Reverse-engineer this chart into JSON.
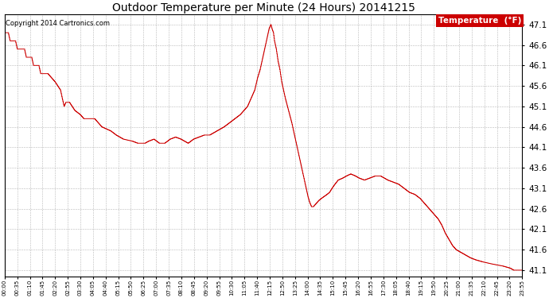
{
  "title": "Outdoor Temperature per Minute (24 Hours) 20141215",
  "copyright_text": "Copyright 2014 Cartronics.com",
  "legend_label": "Temperature  (°F)",
  "line_color": "#cc0000",
  "legend_bg": "#cc0000",
  "legend_text_color": "#ffffff",
  "background_color": "#ffffff",
  "grid_color": "#b0b0b0",
  "ylim": [
    40.95,
    47.35
  ],
  "yticks": [
    41.1,
    41.6,
    42.1,
    42.6,
    43.1,
    43.6,
    44.1,
    44.6,
    45.1,
    45.6,
    46.1,
    46.6,
    47.1
  ],
  "xtick_labels": [
    "00:00",
    "00:35",
    "01:10",
    "01:45",
    "02:20",
    "02:55",
    "03:30",
    "04:05",
    "04:40",
    "05:15",
    "05:50",
    "06:25",
    "07:00",
    "07:35",
    "08:10",
    "08:45",
    "09:20",
    "09:55",
    "10:30",
    "11:05",
    "11:40",
    "12:15",
    "12:50",
    "13:25",
    "14:00",
    "14:35",
    "15:10",
    "15:45",
    "16:20",
    "16:55",
    "17:30",
    "18:05",
    "18:40",
    "19:15",
    "19:50",
    "20:25",
    "21:00",
    "21:35",
    "22:10",
    "22:45",
    "23:20",
    "23:55"
  ],
  "step_data": [
    [
      0,
      46.9
    ],
    [
      10,
      46.9
    ],
    [
      15,
      46.7
    ],
    [
      30,
      46.7
    ],
    [
      35,
      46.5
    ],
    [
      55,
      46.5
    ],
    [
      60,
      46.3
    ],
    [
      75,
      46.3
    ],
    [
      80,
      46.1
    ],
    [
      95,
      46.1
    ],
    [
      100,
      45.9
    ],
    [
      120,
      45.9
    ],
    [
      130,
      45.8
    ],
    [
      140,
      45.7
    ],
    [
      155,
      45.5
    ],
    [
      160,
      45.3
    ],
    [
      165,
      45.1
    ],
    [
      170,
      45.2
    ],
    [
      180,
      45.2
    ],
    [
      195,
      45.0
    ],
    [
      210,
      44.9
    ],
    [
      220,
      44.8
    ],
    [
      250,
      44.8
    ],
    [
      270,
      44.6
    ],
    [
      295,
      44.5
    ],
    [
      310,
      44.4
    ],
    [
      330,
      44.3
    ],
    [
      355,
      44.25
    ],
    [
      370,
      44.2
    ],
    [
      390,
      44.2
    ],
    [
      400,
      44.25
    ],
    [
      415,
      44.3
    ],
    [
      430,
      44.2
    ],
    [
      445,
      44.2
    ],
    [
      460,
      44.3
    ],
    [
      475,
      44.35
    ],
    [
      490,
      44.3
    ],
    [
      500,
      44.25
    ],
    [
      510,
      44.2
    ],
    [
      525,
      44.3
    ],
    [
      540,
      44.35
    ],
    [
      555,
      44.4
    ],
    [
      570,
      44.4
    ],
    [
      590,
      44.5
    ],
    [
      610,
      44.6
    ],
    [
      625,
      44.7
    ],
    [
      640,
      44.8
    ],
    [
      655,
      44.9
    ],
    [
      665,
      45.0
    ],
    [
      675,
      45.1
    ],
    [
      685,
      45.3
    ],
    [
      695,
      45.5
    ],
    [
      703,
      45.8
    ],
    [
      710,
      46.0
    ],
    [
      715,
      46.2
    ],
    [
      720,
      46.4
    ],
    [
      725,
      46.6
    ],
    [
      730,
      46.8
    ],
    [
      735,
      47.0
    ],
    [
      740,
      47.1
    ],
    [
      743,
      47.0
    ],
    [
      747,
      46.9
    ],
    [
      750,
      46.7
    ],
    [
      755,
      46.5
    ],
    [
      760,
      46.2
    ],
    [
      765,
      46.0
    ],
    [
      770,
      45.7
    ],
    [
      775,
      45.5
    ],
    [
      780,
      45.3
    ],
    [
      786,
      45.1
    ],
    [
      792,
      44.9
    ],
    [
      798,
      44.7
    ],
    [
      803,
      44.5
    ],
    [
      808,
      44.3
    ],
    [
      813,
      44.1
    ],
    [
      818,
      43.9
    ],
    [
      823,
      43.7
    ],
    [
      828,
      43.5
    ],
    [
      833,
      43.3
    ],
    [
      838,
      43.1
    ],
    [
      843,
      42.9
    ],
    [
      848,
      42.75
    ],
    [
      853,
      42.65
    ],
    [
      858,
      42.65
    ],
    [
      863,
      42.7
    ],
    [
      868,
      42.75
    ],
    [
      873,
      42.8
    ],
    [
      880,
      42.85
    ],
    [
      888,
      42.9
    ],
    [
      896,
      42.95
    ],
    [
      903,
      43.0
    ],
    [
      910,
      43.1
    ],
    [
      918,
      43.2
    ],
    [
      927,
      43.3
    ],
    [
      940,
      43.35
    ],
    [
      950,
      43.4
    ],
    [
      962,
      43.45
    ],
    [
      975,
      43.4
    ],
    [
      985,
      43.35
    ],
    [
      1000,
      43.3
    ],
    [
      1015,
      43.35
    ],
    [
      1030,
      43.4
    ],
    [
      1045,
      43.4
    ],
    [
      1055,
      43.35
    ],
    [
      1065,
      43.3
    ],
    [
      1080,
      43.25
    ],
    [
      1095,
      43.2
    ],
    [
      1110,
      43.1
    ],
    [
      1125,
      43.0
    ],
    [
      1140,
      42.95
    ],
    [
      1155,
      42.85
    ],
    [
      1165,
      42.75
    ],
    [
      1175,
      42.65
    ],
    [
      1185,
      42.55
    ],
    [
      1195,
      42.45
    ],
    [
      1205,
      42.35
    ],
    [
      1215,
      42.2
    ],
    [
      1225,
      42.0
    ],
    [
      1235,
      41.85
    ],
    [
      1245,
      41.7
    ],
    [
      1255,
      41.6
    ],
    [
      1265,
      41.55
    ],
    [
      1275,
      41.5
    ],
    [
      1285,
      41.45
    ],
    [
      1295,
      41.4
    ],
    [
      1310,
      41.35
    ],
    [
      1330,
      41.3
    ],
    [
      1355,
      41.25
    ],
    [
      1385,
      41.2
    ],
    [
      1405,
      41.15
    ],
    [
      1415,
      41.1
    ],
    [
      1439,
      41.1
    ]
  ]
}
